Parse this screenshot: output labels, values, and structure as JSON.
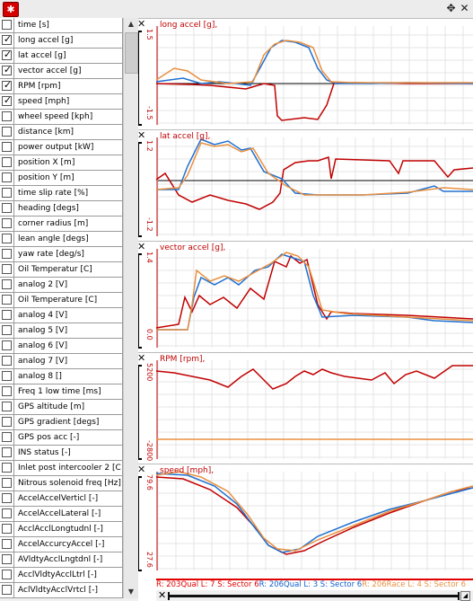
{
  "app": {
    "icon": "app-logo-icon",
    "move_icon": "move-icon",
    "close_icon": "close-icon"
  },
  "channels": [
    {
      "label": "time [s]",
      "checked": false
    },
    {
      "label": "long accel [g]",
      "checked": true
    },
    {
      "label": "lat accel [g]",
      "checked": true
    },
    {
      "label": "vector accel [g]",
      "checked": true
    },
    {
      "label": "RPM [rpm]",
      "checked": true
    },
    {
      "label": "speed [mph]",
      "checked": true
    },
    {
      "label": "wheel speed [kph]",
      "checked": false
    },
    {
      "label": "distance [km]",
      "checked": false
    },
    {
      "label": "power output [kW]",
      "checked": false
    },
    {
      "label": "position X [m]",
      "checked": false
    },
    {
      "label": "position Y [m]",
      "checked": false
    },
    {
      "label": "time slip rate [%]",
      "checked": false
    },
    {
      "label": "heading [degs]",
      "checked": false
    },
    {
      "label": "corner radius [m]",
      "checked": false
    },
    {
      "label": "lean angle [degs]",
      "checked": false
    },
    {
      "label": "yaw rate [deg/s]",
      "checked": false
    },
    {
      "label": "Oil Temperatur [C]",
      "checked": false
    },
    {
      "label": "analog 2 [V]",
      "checked": false
    },
    {
      "label": "Oil Temperature [C]",
      "checked": false
    },
    {
      "label": "analog 4 [V]",
      "checked": false
    },
    {
      "label": "analog 5 [V]",
      "checked": false
    },
    {
      "label": "analog 6 [V]",
      "checked": false
    },
    {
      "label": "analog 7 [V]",
      "checked": false
    },
    {
      "label": "analog 8 []",
      "checked": false
    },
    {
      "label": "Freq 1 low time [ms]",
      "checked": false
    },
    {
      "label": "GPS altitude [m]",
      "checked": false
    },
    {
      "label": "GPS gradient [degs]",
      "checked": false
    },
    {
      "label": "GPS pos acc [-]",
      "checked": false
    },
    {
      "label": "INS status [-]",
      "checked": false
    },
    {
      "label": "Inlet post intercooler 2 [C]",
      "checked": false
    },
    {
      "label": "Nitrous solenoid freq [Hz]",
      "checked": false
    },
    {
      "label": "AccelAccelVerticl [-]",
      "checked": false
    },
    {
      "label": "AccelAccelLateral [-]",
      "checked": false
    },
    {
      "label": "AcclAcclLongtudnl [-]",
      "checked": false
    },
    {
      "label": "AccelAccurcyAccel [-]",
      "checked": false
    },
    {
      "label": "AVldtyAcclLngtdnl [-]",
      "checked": false
    },
    {
      "label": "AcclVldtyAcclLtrl [-]",
      "checked": false
    },
    {
      "label": "AclVldtyAcclVrtcl [-]",
      "checked": false
    }
  ],
  "panels": [
    {
      "title": "long accel [g],",
      "ymax": "1.5",
      "ymin": "-1.5"
    },
    {
      "title": "lat accel [g],",
      "ymax": "1.2",
      "ymin": "-1.2"
    },
    {
      "title": "vector accel [g],",
      "ymax": "1.4",
      "ymin": "0.0"
    },
    {
      "title": "RPM [rpm],",
      "ymax": "5200",
      "ymin": "-2800"
    },
    {
      "title": "speed [mph],",
      "ymax": "79.6",
      "ymin": "27.6"
    }
  ],
  "sector_bar": [
    {
      "text": "R: 20",
      "color": "#e00000"
    },
    {
      "text": "3Qual  L: 7  S: Sector 6",
      "color": "#e00000"
    },
    {
      "text": "R: 20",
      "color": "#1060d0"
    },
    {
      "text": "6Qual  L: 3  S: Sector 6",
      "color": "#1060d0"
    },
    {
      "text": "R: 20",
      "color": "#e89040"
    },
    {
      "text": "6Race  L: 4  S: Sector 6",
      "color": "#e89040"
    }
  ],
  "series_colors": {
    "red": "#c00000",
    "blue": "#2070d0",
    "orange": "#e89040"
  }
}
